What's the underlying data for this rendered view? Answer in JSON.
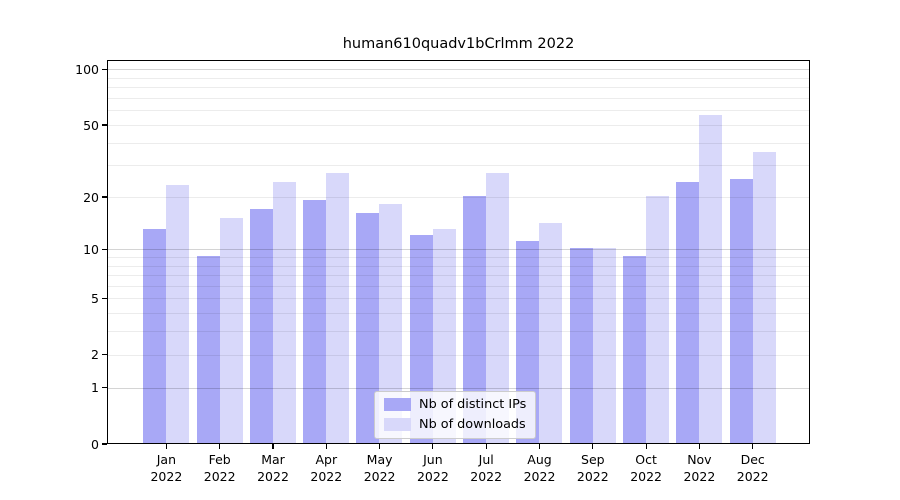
{
  "title": "human610quadv1bCrlmm 2022",
  "chart_data": {
    "type": "bar",
    "title": "human610quadv1bCrlmm 2022",
    "scale": "log1p",
    "categories": [
      "Jan",
      "Feb",
      "Mar",
      "Apr",
      "May",
      "Jun",
      "Jul",
      "Aug",
      "Sep",
      "Oct",
      "Nov",
      "Dec"
    ],
    "category_year": "2022",
    "series": [
      {
        "name": "Nb of distinct IPs",
        "color": "#a8a8f6",
        "values": [
          13,
          9,
          17,
          19,
          16,
          12,
          20,
          11,
          10,
          9,
          24,
          25
        ]
      },
      {
        "name": "Nb of downloads",
        "color": "#d8d8fa",
        "values": [
          23,
          15,
          24,
          27,
          18,
          13,
          27,
          14,
          10,
          20,
          56,
          35
        ]
      }
    ],
    "ylim": [
      0,
      112.7
    ],
    "ytick_labels": [
      "0",
      "1",
      "2",
      "5",
      "10",
      "20",
      "50",
      "100"
    ],
    "ytick_values": [
      0,
      1,
      2,
      5,
      10,
      20,
      50,
      100
    ],
    "gridlines_major": [
      1,
      10,
      100
    ],
    "gridlines_minor": [
      2,
      3,
      4,
      5,
      6,
      7,
      8,
      9,
      20,
      30,
      40,
      50,
      60,
      70,
      80,
      90
    ],
    "grid": true,
    "legend_position": "bottom-center",
    "xlabel": "",
    "ylabel": ""
  }
}
